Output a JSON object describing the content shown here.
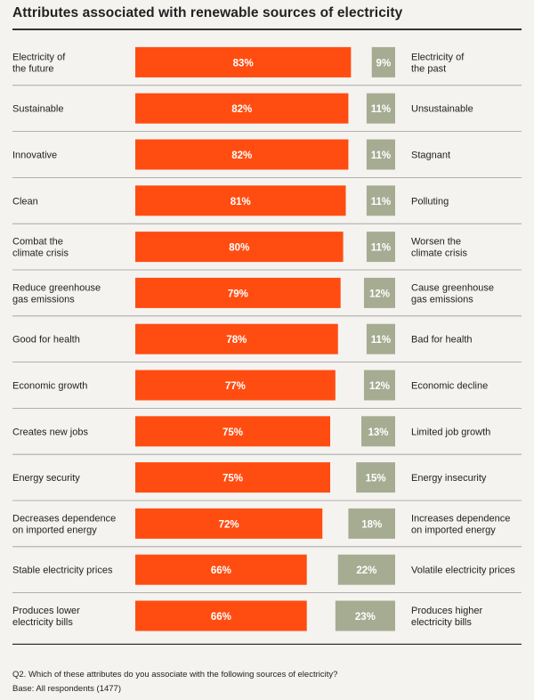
{
  "title": "Attributes associated with renewable sources of electricity",
  "footnote": {
    "question": "Q2. Which of these attributes do you associate with the following sources of electricity?",
    "base": "Base: All respondents (1477)"
  },
  "colors": {
    "positive": "#ff4d12",
    "negative": "#a6ac92",
    "rule": "#9a9a9a",
    "text": "#222222"
  },
  "chart_data": {
    "type": "bar",
    "title": "Attributes associated with renewable sources of electricity",
    "xlim": [
      0,
      100
    ],
    "grid": false,
    "series": [
      {
        "values": [
          83,
          82,
          82,
          81,
          80,
          79,
          78,
          77,
          75,
          75,
          72,
          66,
          66
        ]
      },
      {
        "values": [
          9,
          11,
          11,
          11,
          11,
          12,
          11,
          12,
          13,
          15,
          18,
          22,
          23
        ]
      }
    ],
    "rows": [
      {
        "left": [
          "Electricity of",
          "the future"
        ],
        "right": [
          "Electricity of",
          "the past"
        ],
        "pos": 83,
        "neg": 9
      },
      {
        "left": [
          "Sustainable"
        ],
        "right": [
          "Unsustainable"
        ],
        "pos": 82,
        "neg": 11
      },
      {
        "left": [
          "Innovative"
        ],
        "right": [
          "Stagnant"
        ],
        "pos": 82,
        "neg": 11
      },
      {
        "left": [
          "Clean"
        ],
        "right": [
          "Polluting"
        ],
        "pos": 81,
        "neg": 11
      },
      {
        "left": [
          "Combat the",
          "climate crisis"
        ],
        "right": [
          "Worsen the",
          "climate crisis"
        ],
        "pos": 80,
        "neg": 11
      },
      {
        "left": [
          "Reduce greenhouse",
          "gas emissions"
        ],
        "right": [
          "Cause greenhouse",
          "gas emissions"
        ],
        "pos": 79,
        "neg": 12
      },
      {
        "left": [
          "Good for health"
        ],
        "right": [
          "Bad for health"
        ],
        "pos": 78,
        "neg": 11
      },
      {
        "left": [
          "Economic growth"
        ],
        "right": [
          "Economic decline"
        ],
        "pos": 77,
        "neg": 12
      },
      {
        "left": [
          "Creates new jobs"
        ],
        "right": [
          "Limited job growth"
        ],
        "pos": 75,
        "neg": 13
      },
      {
        "left": [
          "Energy security"
        ],
        "right": [
          "Energy insecurity"
        ],
        "pos": 75,
        "neg": 15
      },
      {
        "left": [
          "Decreases dependence",
          "on imported energy"
        ],
        "right": [
          "Increases dependence",
          "on imported energy"
        ],
        "pos": 72,
        "neg": 18
      },
      {
        "left": [
          "Stable electricity prices"
        ],
        "right": [
          "Volatile electricity prices"
        ],
        "pos": 66,
        "neg": 22
      },
      {
        "left": [
          "Produces lower",
          "electricity bills"
        ],
        "right": [
          "Produces higher",
          "electricity bills"
        ],
        "pos": 66,
        "neg": 23
      }
    ]
  }
}
